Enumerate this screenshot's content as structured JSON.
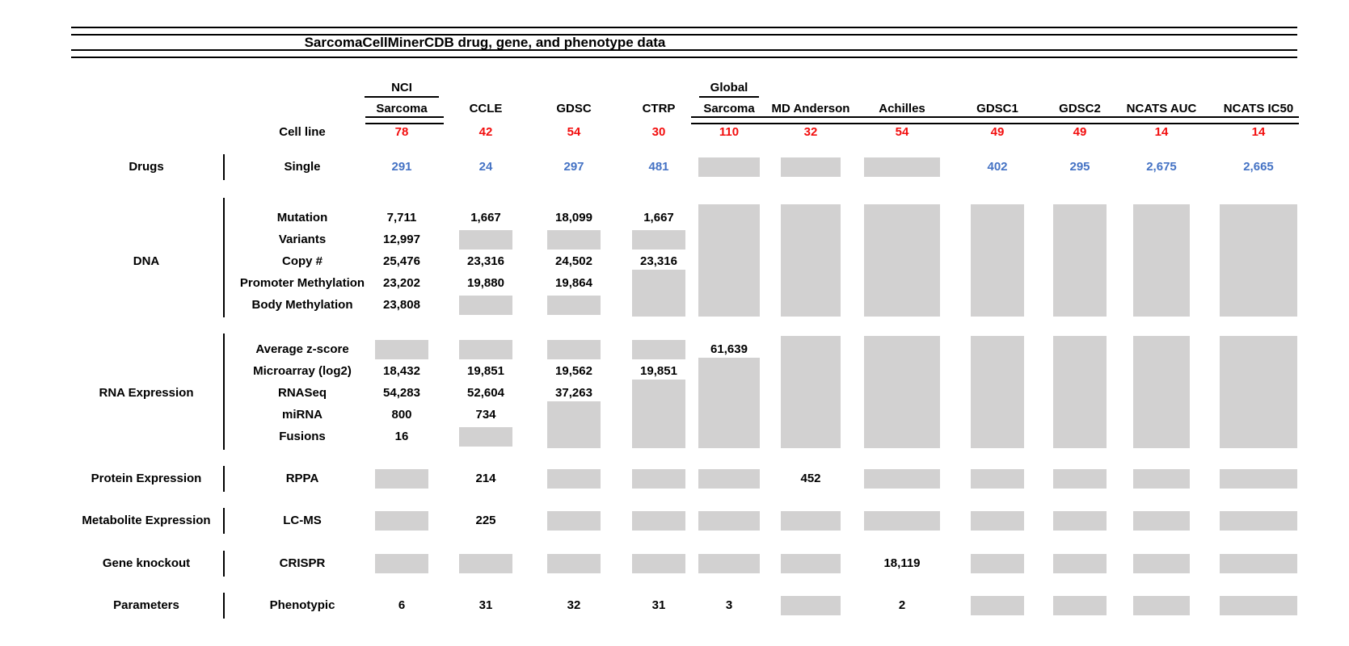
{
  "title": "SarcomaCellMinerCDB drug, gene, and phenotype data",
  "cell_line_label": "Cell line",
  "colors": {
    "red": "#F20D0D",
    "blue": "#4472C4",
    "gray": "#D2D1D1"
  },
  "columns": [
    {
      "label_top": "NCI",
      "label": "Sarcoma",
      "cell_lines": "78"
    },
    {
      "label": "CCLE",
      "cell_lines": "42"
    },
    {
      "label": "GDSC",
      "cell_lines": "54"
    },
    {
      "label": "CTRP",
      "cell_lines": "30"
    },
    {
      "label_top": "Global",
      "label": "Sarcoma",
      "cell_lines": "110"
    },
    {
      "label": "MD Anderson",
      "cell_lines": "32"
    },
    {
      "label": "Achilles",
      "cell_lines": "54"
    },
    {
      "label": "GDSC1",
      "cell_lines": "49"
    },
    {
      "label": "GDSC2",
      "cell_lines": "49"
    },
    {
      "label": "NCATS AUC",
      "cell_lines": "14"
    },
    {
      "label": "NCATS IC50",
      "cell_lines": "14"
    }
  ],
  "no_data_marker": "#",
  "blocks": [
    {
      "category": "Drugs",
      "rows": [
        {
          "label": "Single",
          "value_color": "blue",
          "cells": [
            "291",
            "24",
            "297",
            "481",
            "#",
            "#",
            "#",
            "402",
            "295",
            "2,675",
            "2,665"
          ]
        }
      ],
      "gray_spans": []
    },
    {
      "category": "DNA",
      "rows": [
        {
          "label": "Mutation",
          "cells": [
            "7,711",
            "1,667",
            "18,099",
            "1,667",
            "",
            "",
            "",
            "",
            "",
            "",
            ""
          ]
        },
        {
          "label": "Variants",
          "cells": [
            "12,997",
            "#",
            "#",
            "#",
            "",
            "",
            "",
            "",
            "",
            "",
            ""
          ]
        },
        {
          "label": "Copy #",
          "cells": [
            "25,476",
            "23,316",
            "24,502",
            "23,316",
            "",
            "",
            "",
            "",
            "",
            "",
            ""
          ]
        },
        {
          "label": "Promoter Methylation",
          "cells": [
            "23,202",
            "19,880",
            "19,864",
            "",
            "",
            "",
            "",
            "",
            "",
            "",
            ""
          ]
        },
        {
          "label": "Body Methylation",
          "cells": [
            "23,808",
            "#",
            "#",
            "",
            "",
            "",
            "",
            "",
            "",
            "",
            ""
          ]
        }
      ],
      "gray_spans": [
        {
          "col": 3,
          "r0": 3,
          "r1": 4
        },
        {
          "col": 4,
          "r0": 0,
          "r1": 4
        },
        {
          "col": 5,
          "r0": 0,
          "r1": 4
        },
        {
          "col": 6,
          "r0": 0,
          "r1": 4
        },
        {
          "col": 7,
          "r0": 0,
          "r1": 4
        },
        {
          "col": 8,
          "r0": 0,
          "r1": 4
        },
        {
          "col": 9,
          "r0": 0,
          "r1": 4
        },
        {
          "col": 10,
          "r0": 0,
          "r1": 4
        }
      ]
    },
    {
      "category": "RNA Expression",
      "rows": [
        {
          "label": "Average z-score",
          "cells": [
            "#",
            "#",
            "#",
            "#",
            "61,639",
            "",
            "",
            "",
            "",
            "",
            ""
          ]
        },
        {
          "label": "Microarray (log2)",
          "cells": [
            "18,432",
            "19,851",
            "19,562",
            "19,851",
            "",
            "",
            "",
            "",
            "",
            "",
            ""
          ]
        },
        {
          "label": "RNASeq",
          "cells": [
            "54,283",
            "52,604",
            "37,263",
            "",
            "",
            "",
            "",
            "",
            "",
            "",
            ""
          ]
        },
        {
          "label": "miRNA",
          "cells": [
            "800",
            "734",
            "",
            "",
            "",
            "",
            "",
            "",
            "",
            "",
            ""
          ]
        },
        {
          "label": "Fusions",
          "cells": [
            "16",
            "#",
            "",
            "",
            "",
            "",
            "",
            "",
            "",
            "",
            ""
          ]
        }
      ],
      "gray_spans": [
        {
          "col": 2,
          "r0": 3,
          "r1": 4
        },
        {
          "col": 3,
          "r0": 2,
          "r1": 4
        },
        {
          "col": 4,
          "r0": 1,
          "r1": 4
        },
        {
          "col": 5,
          "r0": 0,
          "r1": 4
        },
        {
          "col": 6,
          "r0": 0,
          "r1": 4
        },
        {
          "col": 7,
          "r0": 0,
          "r1": 4
        },
        {
          "col": 8,
          "r0": 0,
          "r1": 4
        },
        {
          "col": 9,
          "r0": 0,
          "r1": 4
        },
        {
          "col": 10,
          "r0": 0,
          "r1": 4
        }
      ]
    },
    {
      "category": "Protein Expression",
      "rows": [
        {
          "label": "RPPA",
          "cells": [
            "#",
            "214",
            "#",
            "#",
            "#",
            "452",
            "#",
            "#",
            "#",
            "#",
            "#"
          ]
        }
      ],
      "gray_spans": []
    },
    {
      "category": "Metabolite Expression",
      "rows": [
        {
          "label": "LC-MS",
          "cells": [
            "#",
            "225",
            "#",
            "#",
            "#",
            "#",
            "#",
            "#",
            "#",
            "#",
            "#"
          ]
        }
      ],
      "gray_spans": []
    },
    {
      "category": "Gene knockout",
      "rows": [
        {
          "label": "CRISPR",
          "cells": [
            "#",
            "#",
            "#",
            "#",
            "#",
            "#",
            "18,119",
            "#",
            "#",
            "#",
            "#"
          ]
        }
      ],
      "gray_spans": []
    },
    {
      "category": "Parameters",
      "rows": [
        {
          "label": "Phenotypic",
          "cells": [
            "6",
            "31",
            "32",
            "31",
            "3",
            "#",
            "2",
            "#",
            "#",
            "#",
            "#"
          ]
        }
      ],
      "gray_spans": []
    }
  ],
  "chart_data": {
    "type": "table",
    "title": "SarcomaCellMinerCDB drug, gene, and phenotype data",
    "columns": [
      "NCI Sarcoma",
      "CCLE",
      "GDSC",
      "CTRP",
      "Global Sarcoma",
      "MD Anderson",
      "Achilles",
      "GDSC1",
      "GDSC2",
      "NCATS AUC",
      "NCATS IC50"
    ],
    "cell_lines": [
      78,
      42,
      54,
      30,
      110,
      32,
      54,
      49,
      49,
      14,
      14
    ],
    "rows": [
      {
        "category": "Drugs",
        "measure": "Single",
        "values": [
          291,
          24,
          297,
          481,
          null,
          null,
          null,
          402,
          295,
          2675,
          2665
        ]
      },
      {
        "category": "DNA",
        "measure": "Mutation",
        "values": [
          7711,
          1667,
          18099,
          1667,
          null,
          null,
          null,
          null,
          null,
          null,
          null
        ]
      },
      {
        "category": "DNA",
        "measure": "Variants",
        "values": [
          12997,
          null,
          null,
          null,
          null,
          null,
          null,
          null,
          null,
          null,
          null
        ]
      },
      {
        "category": "DNA",
        "measure": "Copy #",
        "values": [
          25476,
          23316,
          24502,
          23316,
          null,
          null,
          null,
          null,
          null,
          null,
          null
        ]
      },
      {
        "category": "DNA",
        "measure": "Promoter Methylation",
        "values": [
          23202,
          19880,
          19864,
          null,
          null,
          null,
          null,
          null,
          null,
          null,
          null
        ]
      },
      {
        "category": "DNA",
        "measure": "Body Methylation",
        "values": [
          23808,
          null,
          null,
          null,
          null,
          null,
          null,
          null,
          null,
          null,
          null
        ]
      },
      {
        "category": "RNA Expression",
        "measure": "Average z-score",
        "values": [
          null,
          null,
          null,
          null,
          61639,
          null,
          null,
          null,
          null,
          null,
          null
        ]
      },
      {
        "category": "RNA Expression",
        "measure": "Microarray (log2)",
        "values": [
          18432,
          19851,
          19562,
          19851,
          null,
          null,
          null,
          null,
          null,
          null,
          null
        ]
      },
      {
        "category": "RNA Expression",
        "measure": "RNASeq",
        "values": [
          54283,
          52604,
          37263,
          null,
          null,
          null,
          null,
          null,
          null,
          null,
          null
        ]
      },
      {
        "category": "RNA Expression",
        "measure": "miRNA",
        "values": [
          800,
          734,
          null,
          null,
          null,
          null,
          null,
          null,
          null,
          null,
          null
        ]
      },
      {
        "category": "RNA Expression",
        "measure": "Fusions",
        "values": [
          16,
          null,
          null,
          null,
          null,
          null,
          null,
          null,
          null,
          null,
          null
        ]
      },
      {
        "category": "Protein Expression",
        "measure": "RPPA",
        "values": [
          null,
          214,
          null,
          null,
          null,
          452,
          null,
          null,
          null,
          null,
          null
        ]
      },
      {
        "category": "Metabolite Expression",
        "measure": "LC-MS",
        "values": [
          null,
          225,
          null,
          null,
          null,
          null,
          null,
          null,
          null,
          null,
          null
        ]
      },
      {
        "category": "Gene knockout",
        "measure": "CRISPR",
        "values": [
          null,
          null,
          null,
          null,
          null,
          null,
          18119,
          null,
          null,
          null,
          null
        ]
      },
      {
        "category": "Parameters",
        "measure": "Phenotypic",
        "values": [
          6,
          31,
          32,
          31,
          3,
          null,
          2,
          null,
          null,
          null,
          null
        ]
      }
    ],
    "note_gray_boxes_mean": "data not available"
  }
}
